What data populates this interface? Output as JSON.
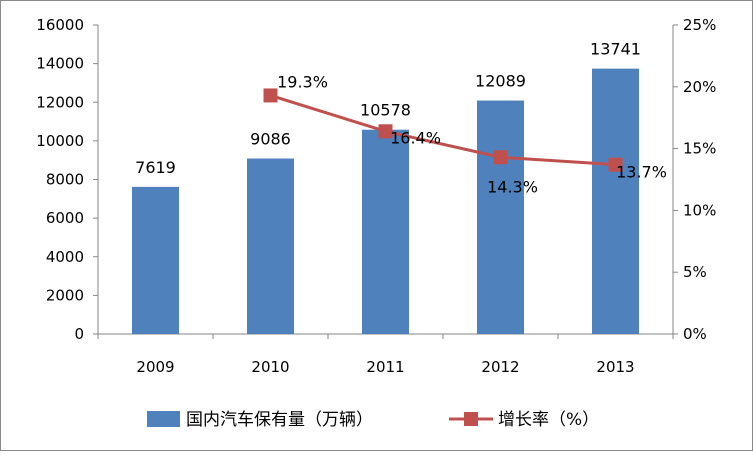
{
  "chart_data": {
    "type": "bar",
    "categories": [
      "2009",
      "2010",
      "2011",
      "2012",
      "2013"
    ],
    "series": [
      {
        "name": "国内汽车保有量（万辆）",
        "type": "bar",
        "axis": "left",
        "values": [
          7619,
          9086,
          10578,
          12089,
          13741
        ],
        "labels": [
          "7619",
          "9086",
          "10578",
          "12089",
          "13741"
        ],
        "color": "#4f81bd"
      },
      {
        "name": "增长率（%）",
        "type": "line",
        "axis": "right",
        "values": [
          null,
          19.3,
          16.4,
          14.3,
          13.7
        ],
        "labels": [
          "",
          "19.3%",
          "16.4%",
          "14.3%",
          "13.7%"
        ],
        "color": "#c0504d",
        "marker": "square"
      }
    ],
    "y_left": {
      "range": [
        0,
        16000
      ],
      "ticks": [
        "0",
        "2000",
        "4000",
        "6000",
        "8000",
        "10000",
        "12000",
        "14000",
        "16000"
      ]
    },
    "y_right": {
      "range": [
        0,
        25
      ],
      "ticks": [
        "0%",
        "5%",
        "10%",
        "15%",
        "20%",
        "25%"
      ]
    },
    "grid": false,
    "legend_position": "bottom"
  }
}
